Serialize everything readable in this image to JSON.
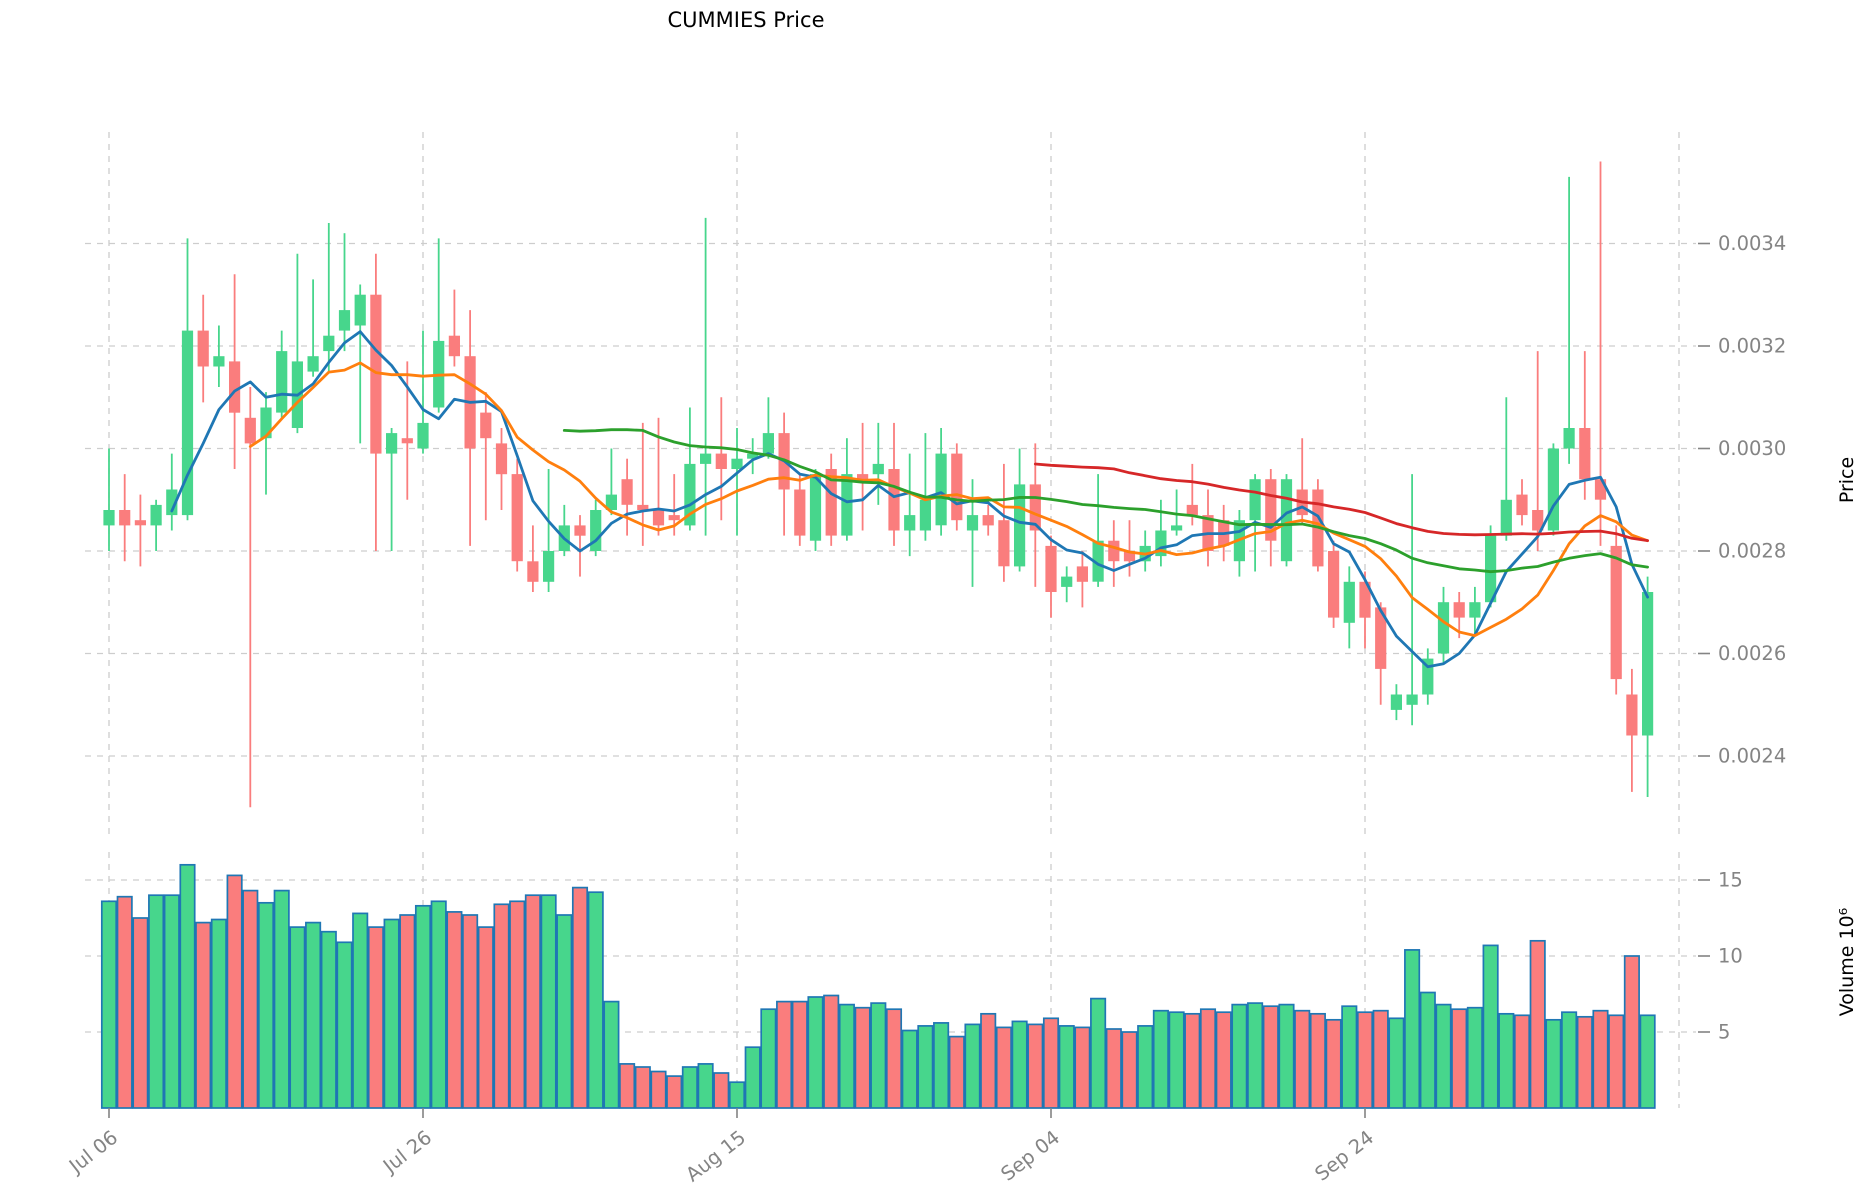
{
  "title": "CUMMIES Price",
  "colors": {
    "background": "#ffffff",
    "up": "#47d68c",
    "down": "#fa7d7d",
    "volume_edge": "#1f77b4",
    "grid": "#cdcdcd",
    "tick_text": "#848484",
    "title_text": "#000000"
  },
  "chart_data": {
    "type": "candlestick",
    "title": "CUMMIES Price",
    "subpanels": [
      "price",
      "volume"
    ],
    "grid": true,
    "price_axis": {
      "label": "Price",
      "side": "right",
      "tick_labels": [
        "0.0034",
        "0.0032",
        "0.0030",
        "0.0028",
        "0.0026",
        "0.0024"
      ],
      "tick_values": [
        0.0034,
        0.0032,
        0.003,
        0.0028,
        0.0026,
        0.0024
      ]
    },
    "volume_axis": {
      "label": "Volume 10⁶",
      "side": "right",
      "tick_labels": [
        "15",
        "10",
        "5"
      ],
      "tick_values": [
        15,
        10,
        5
      ],
      "unit": 1000000
    },
    "x_axis": {
      "tick_positions": [
        0,
        20,
        40,
        60,
        80,
        100
      ],
      "tick_labels": [
        "Jul 06",
        "Jul 26",
        "Aug 15",
        "Sep 04",
        "Sep 24",
        ""
      ]
    },
    "moving_averages": [
      {
        "name": "SMA5",
        "window": 5,
        "color": "#1f77b4"
      },
      {
        "name": "SMA10",
        "window": 10,
        "color": "#ff7f0e"
      },
      {
        "name": "SMA30",
        "window": 30,
        "color": "#2ca02c"
      },
      {
        "name": "SMA60",
        "window": 60,
        "color": "#d62728"
      }
    ],
    "dates": [
      "Jul 06",
      "Jul 07",
      "Jul 08",
      "Jul 09",
      "Jul 10",
      "Jul 11",
      "Jul 12",
      "Jul 13",
      "Jul 14",
      "Jul 15",
      "Jul 16",
      "Jul 17",
      "Jul 18",
      "Jul 19",
      "Jul 20",
      "Jul 21",
      "Jul 22",
      "Jul 23",
      "Jul 24",
      "Jul 25",
      "Jul 26",
      "Jul 27",
      "Jul 28",
      "Jul 29",
      "Jul 30",
      "Jul 31",
      "Aug 01",
      "Aug 02",
      "Aug 03",
      "Aug 04",
      "Aug 05",
      "Aug 06",
      "Aug 07",
      "Aug 08",
      "Aug 09",
      "Aug 10",
      "Aug 11",
      "Aug 12",
      "Aug 13",
      "Aug 14",
      "Aug 15",
      "Aug 16",
      "Aug 17",
      "Aug 18",
      "Aug 19",
      "Aug 20",
      "Aug 21",
      "Aug 22",
      "Aug 23",
      "Aug 24",
      "Aug 25",
      "Aug 26",
      "Aug 27",
      "Aug 28",
      "Aug 29",
      "Aug 30",
      "Aug 31",
      "Sep 01",
      "Sep 02",
      "Sep 03",
      "Sep 04",
      "Sep 05",
      "Sep 06",
      "Sep 07",
      "Sep 08",
      "Sep 09",
      "Sep 10",
      "Sep 11",
      "Sep 12",
      "Sep 13",
      "Sep 14",
      "Sep 15",
      "Sep 16",
      "Sep 17",
      "Sep 18",
      "Sep 19",
      "Sep 20",
      "Sep 21",
      "Sep 22",
      "Sep 23",
      "Sep 24",
      "Sep 25",
      "Sep 26",
      "Sep 27",
      "Sep 28",
      "Sep 29",
      "Sep 30",
      "Oct 01",
      "Oct 02",
      "Oct 03",
      "Oct 04",
      "Oct 05",
      "Oct 06",
      "Oct 07",
      "Oct 08",
      "Oct 09",
      "Oct 10",
      "Oct 11",
      "Oct 12"
    ],
    "ohlc": [
      [
        0.00285,
        0.003,
        0.0028,
        0.00288
      ],
      [
        0.00288,
        0.00295,
        0.00278,
        0.00285
      ],
      [
        0.00286,
        0.00291,
        0.00277,
        0.00285
      ],
      [
        0.00285,
        0.0029,
        0.0028,
        0.00289
      ],
      [
        0.00287,
        0.00299,
        0.00284,
        0.00292
      ],
      [
        0.00287,
        0.00341,
        0.00286,
        0.00323
      ],
      [
        0.00323,
        0.0033,
        0.00309,
        0.00316
      ],
      [
        0.00316,
        0.00324,
        0.00312,
        0.00318
      ],
      [
        0.00317,
        0.00334,
        0.00296,
        0.00307
      ],
      [
        0.00306,
        0.00312,
        0.0023,
        0.00301
      ],
      [
        0.00302,
        0.00311,
        0.00291,
        0.00308
      ],
      [
        0.00307,
        0.00323,
        0.00306,
        0.00319
      ],
      [
        0.00304,
        0.00338,
        0.00303,
        0.00317
      ],
      [
        0.00315,
        0.00333,
        0.00314,
        0.00318
      ],
      [
        0.00319,
        0.00344,
        0.00315,
        0.00322
      ],
      [
        0.00323,
        0.00342,
        0.00319,
        0.00327
      ],
      [
        0.00324,
        0.00332,
        0.00301,
        0.0033
      ],
      [
        0.0033,
        0.00338,
        0.0028,
        0.00299
      ],
      [
        0.00299,
        0.00304,
        0.0028,
        0.00303
      ],
      [
        0.00302,
        0.00317,
        0.0029,
        0.00301
      ],
      [
        0.003,
        0.00323,
        0.00299,
        0.00305
      ],
      [
        0.00308,
        0.00341,
        0.00307,
        0.00321
      ],
      [
        0.00322,
        0.00331,
        0.00316,
        0.00318
      ],
      [
        0.00318,
        0.00327,
        0.00281,
        0.003
      ],
      [
        0.00307,
        0.00311,
        0.00286,
        0.00302
      ],
      [
        0.00301,
        0.00304,
        0.00288,
        0.00295
      ],
      [
        0.00295,
        0.00298,
        0.00276,
        0.00278
      ],
      [
        0.00278,
        0.00285,
        0.00272,
        0.00274
      ],
      [
        0.00274,
        0.00296,
        0.00272,
        0.0028
      ],
      [
        0.0028,
        0.00289,
        0.00279,
        0.00285
      ],
      [
        0.00285,
        0.00287,
        0.00275,
        0.00283
      ],
      [
        0.0028,
        0.0029,
        0.00279,
        0.00288
      ],
      [
        0.00288,
        0.003,
        0.00287,
        0.00291
      ],
      [
        0.00294,
        0.00298,
        0.00283,
        0.00289
      ],
      [
        0.00289,
        0.00305,
        0.00281,
        0.00288
      ],
      [
        0.00288,
        0.00306,
        0.00283,
        0.00285
      ],
      [
        0.00287,
        0.00295,
        0.00283,
        0.00286
      ],
      [
        0.00285,
        0.00308,
        0.00284,
        0.00297
      ],
      [
        0.00297,
        0.00345,
        0.00283,
        0.00299
      ],
      [
        0.00299,
        0.0031,
        0.00286,
        0.00296
      ],
      [
        0.00296,
        0.00304,
        0.00283,
        0.00298
      ],
      [
        0.00298,
        0.00302,
        0.00295,
        0.00299
      ],
      [
        0.00299,
        0.0031,
        0.00298,
        0.00303
      ],
      [
        0.00303,
        0.00307,
        0.00283,
        0.00292
      ],
      [
        0.00292,
        0.00295,
        0.00281,
        0.00283
      ],
      [
        0.00282,
        0.00296,
        0.0028,
        0.00295
      ],
      [
        0.00296,
        0.00299,
        0.00281,
        0.00283
      ],
      [
        0.00283,
        0.00302,
        0.00282,
        0.00295
      ],
      [
        0.00295,
        0.00305,
        0.00284,
        0.00294
      ],
      [
        0.00295,
        0.00305,
        0.00289,
        0.00297
      ],
      [
        0.00296,
        0.00305,
        0.00281,
        0.00284
      ],
      [
        0.00284,
        0.00299,
        0.00279,
        0.00287
      ],
      [
        0.00284,
        0.00303,
        0.00282,
        0.0029
      ],
      [
        0.00285,
        0.00304,
        0.00283,
        0.00299
      ],
      [
        0.00299,
        0.00301,
        0.00284,
        0.00286
      ],
      [
        0.00284,
        0.00294,
        0.00273,
        0.00287
      ],
      [
        0.00287,
        0.00289,
        0.00283,
        0.00285
      ],
      [
        0.00286,
        0.00297,
        0.00274,
        0.00277
      ],
      [
        0.00277,
        0.003,
        0.00276,
        0.00293
      ],
      [
        0.00293,
        0.00301,
        0.00273,
        0.00284
      ],
      [
        0.00281,
        0.00283,
        0.00267,
        0.00272
      ],
      [
        0.00273,
        0.00277,
        0.0027,
        0.00275
      ],
      [
        0.00277,
        0.0028,
        0.00269,
        0.00274
      ],
      [
        0.00274,
        0.00295,
        0.00273,
        0.00282
      ],
      [
        0.00282,
        0.00286,
        0.00273,
        0.00278
      ],
      [
        0.0028,
        0.00286,
        0.00275,
        0.00278
      ],
      [
        0.00278,
        0.00284,
        0.00276,
        0.00281
      ],
      [
        0.00279,
        0.0029,
        0.00277,
        0.00284
      ],
      [
        0.00284,
        0.00292,
        0.00283,
        0.00285
      ],
      [
        0.00289,
        0.00297,
        0.00285,
        0.00287
      ],
      [
        0.00287,
        0.00292,
        0.00277,
        0.0028
      ],
      [
        0.00286,
        0.00289,
        0.00278,
        0.00281
      ],
      [
        0.00278,
        0.00288,
        0.00275,
        0.00286
      ],
      [
        0.00286,
        0.00295,
        0.00276,
        0.00294
      ],
      [
        0.00294,
        0.00296,
        0.00277,
        0.00282
      ],
      [
        0.00278,
        0.00295,
        0.00277,
        0.00294
      ],
      [
        0.00292,
        0.00302,
        0.00285,
        0.00287
      ],
      [
        0.00292,
        0.00294,
        0.00276,
        0.00277
      ],
      [
        0.0028,
        0.00282,
        0.00265,
        0.00267
      ],
      [
        0.00266,
        0.00277,
        0.00261,
        0.00274
      ],
      [
        0.00274,
        0.00276,
        0.00261,
        0.00267
      ],
      [
        0.00269,
        0.0027,
        0.0025,
        0.00257
      ],
      [
        0.00249,
        0.00254,
        0.00247,
        0.00252
      ],
      [
        0.0025,
        0.00295,
        0.00246,
        0.00252
      ],
      [
        0.00252,
        0.00261,
        0.0025,
        0.00259
      ],
      [
        0.0026,
        0.00273,
        0.00258,
        0.0027
      ],
      [
        0.0027,
        0.00272,
        0.00263,
        0.00267
      ],
      [
        0.00267,
        0.00273,
        0.00264,
        0.0027
      ],
      [
        0.0027,
        0.00285,
        0.00269,
        0.00283
      ],
      [
        0.00283,
        0.0031,
        0.00282,
        0.0029
      ],
      [
        0.00291,
        0.00294,
        0.00285,
        0.00287
      ],
      [
        0.00288,
        0.00319,
        0.0028,
        0.00284
      ],
      [
        0.00284,
        0.00301,
        0.00283,
        0.003
      ],
      [
        0.003,
        0.00353,
        0.00297,
        0.00304
      ],
      [
        0.00304,
        0.00319,
        0.0029,
        0.00294
      ],
      [
        0.00294,
        0.00356,
        0.00281,
        0.0029
      ],
      [
        0.00281,
        0.00285,
        0.00252,
        0.00255
      ],
      [
        0.00252,
        0.00257,
        0.00233,
        0.00244
      ],
      [
        0.00244,
        0.00275,
        0.00232,
        0.00272
      ]
    ],
    "volume_millions": [
      13.6,
      13.9,
      12.5,
      14.0,
      14.0,
      16.0,
      12.2,
      12.4,
      15.3,
      14.3,
      13.5,
      14.3,
      11.9,
      12.2,
      11.6,
      10.9,
      12.8,
      11.9,
      12.4,
      12.7,
      13.3,
      13.6,
      12.9,
      12.7,
      11.9,
      13.4,
      13.6,
      14.0,
      14.0,
      12.7,
      14.5,
      14.2,
      7.0,
      2.9,
      2.7,
      2.4,
      2.1,
      2.7,
      2.9,
      2.3,
      1.7,
      4.0,
      6.5,
      7.0,
      7.0,
      7.3,
      7.4,
      6.8,
      6.6,
      6.9,
      6.5,
      5.1,
      5.4,
      5.6,
      4.7,
      5.5,
      6.2,
      5.3,
      5.7,
      5.5,
      5.9,
      5.4,
      5.3,
      7.2,
      5.2,
      5.0,
      5.4,
      6.4,
      6.3,
      6.2,
      6.5,
      6.3,
      6.8,
      6.9,
      6.7,
      6.8,
      6.4,
      6.2,
      5.8,
      6.7,
      6.3,
      6.4,
      5.9,
      10.4,
      7.6,
      6.8,
      6.5,
      6.6,
      10.7,
      6.2,
      6.1,
      11.0,
      5.8,
      6.3,
      6.0,
      6.4,
      6.1,
      10.0,
      6.1
    ]
  }
}
